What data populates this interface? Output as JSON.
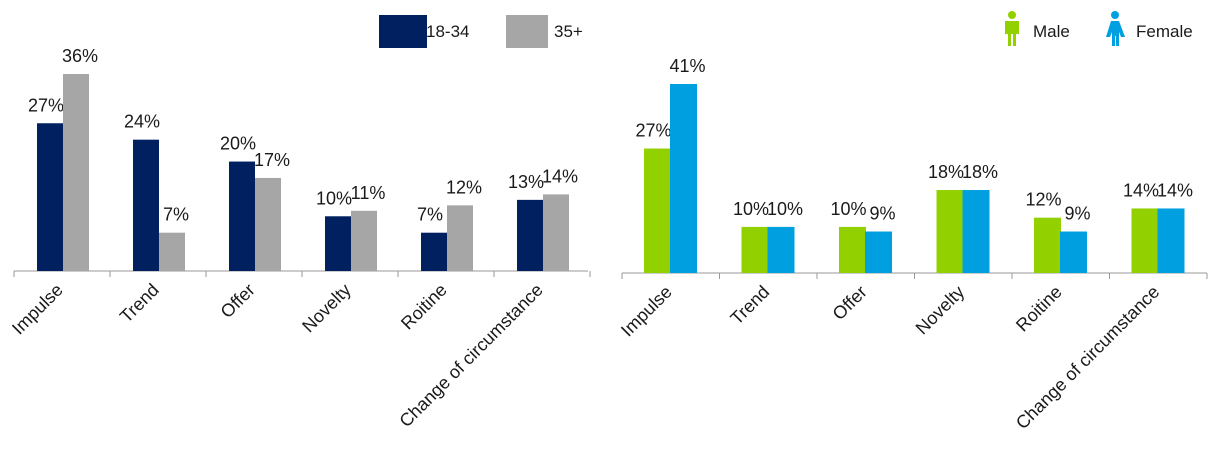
{
  "chart_data": [
    {
      "type": "bar",
      "title": "",
      "xlabel": "",
      "ylabel": "",
      "ylim": [
        0,
        40
      ],
      "grid": false,
      "legend_position": "top-right",
      "categories": [
        "Impulse",
        "Trend",
        "Offer",
        "Novelty",
        "Roitine",
        "Change of circumstance"
      ],
      "series": [
        {
          "name": "18-34",
          "color": "#002060",
          "values": [
            27,
            24,
            20,
            10,
            7,
            13
          ],
          "labels": [
            "27%",
            "24%",
            "20%",
            "10%",
            "7%",
            "13%"
          ]
        },
        {
          "name": "35+",
          "color": "#a6a6a6",
          "values": [
            36,
            7,
            17,
            11,
            12,
            14
          ],
          "labels": [
            "36%",
            "7%",
            "17%",
            "11%",
            "12%",
            "14%"
          ]
        }
      ]
    },
    {
      "type": "bar",
      "title": "",
      "xlabel": "",
      "ylabel": "",
      "ylim": [
        0,
        43
      ],
      "grid": false,
      "legend_position": "top-right",
      "categories": [
        "Impulse",
        "Trend",
        "Offer",
        "Novelty",
        "Roitine",
        "Change of circumstance"
      ],
      "series": [
        {
          "name": "Male",
          "color": "#92d000",
          "icon": "male-icon",
          "values": [
            27,
            10,
            10,
            18,
            12,
            14
          ],
          "labels": [
            "27%",
            "10%",
            "10%",
            "18%",
            "12%",
            "14%"
          ]
        },
        {
          "name": "Female",
          "color": "#00a0e0",
          "icon": "female-icon",
          "values": [
            41,
            10,
            9,
            18,
            9,
            14
          ],
          "labels": [
            "41%",
            "10%",
            "9%",
            "18%",
            "9%",
            "14%"
          ]
        }
      ]
    }
  ]
}
